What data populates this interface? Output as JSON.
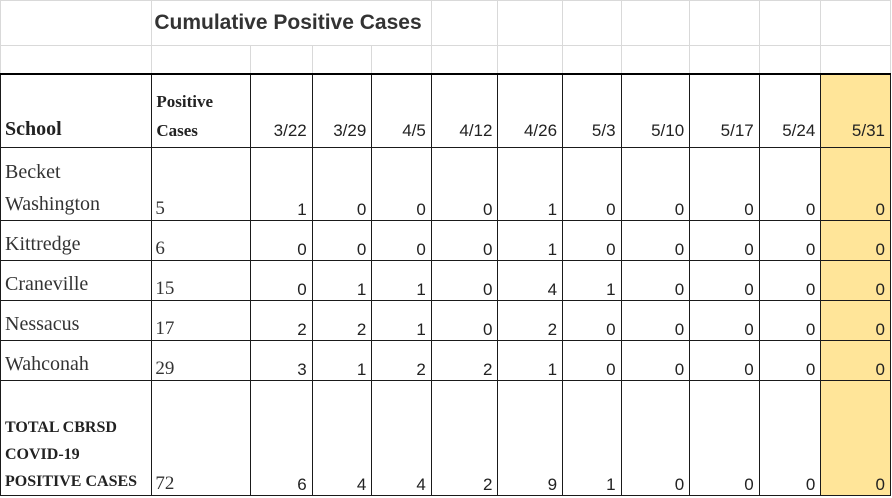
{
  "title": "Cumulative Positive Cases",
  "header": {
    "school": "School",
    "positive_cases": "Positive Cases",
    "dates": [
      "3/22",
      "3/29",
      "4/5",
      "4/12",
      "4/26",
      "5/3",
      "5/10",
      "5/17",
      "5/24",
      "5/31"
    ]
  },
  "rows": [
    {
      "school": "Becket Washington",
      "positive": "5",
      "values": [
        "1",
        "0",
        "0",
        "0",
        "1",
        "0",
        "0",
        "0",
        "0",
        "0"
      ]
    },
    {
      "school": "Kittredge",
      "positive": "6",
      "values": [
        "0",
        "0",
        "0",
        "0",
        "1",
        "0",
        "0",
        "0",
        "0",
        "0"
      ]
    },
    {
      "school": "Craneville",
      "positive": "15",
      "values": [
        "0",
        "1",
        "1",
        "0",
        "4",
        "1",
        "0",
        "0",
        "0",
        "0"
      ]
    },
    {
      "school": "Nessacus",
      "positive": "17",
      "values": [
        "2",
        "2",
        "1",
        "0",
        "2",
        "0",
        "0",
        "0",
        "0",
        "0"
      ]
    },
    {
      "school": "Wahconah",
      "positive": "29",
      "values": [
        "3",
        "1",
        "2",
        "2",
        "1",
        "0",
        "0",
        "0",
        "0",
        "0"
      ]
    }
  ],
  "total": {
    "label": "TOTAL CBRSD COVID-19 POSITIVE CASES",
    "positive": "72",
    "values": [
      "6",
      "4",
      "4",
      "2",
      "9",
      "1",
      "0",
      "0",
      "0",
      "0"
    ]
  },
  "colors": {
    "highlight_column": "#ffe599",
    "grid": "#d9d9d9",
    "table_border": "#1a1a1a"
  }
}
